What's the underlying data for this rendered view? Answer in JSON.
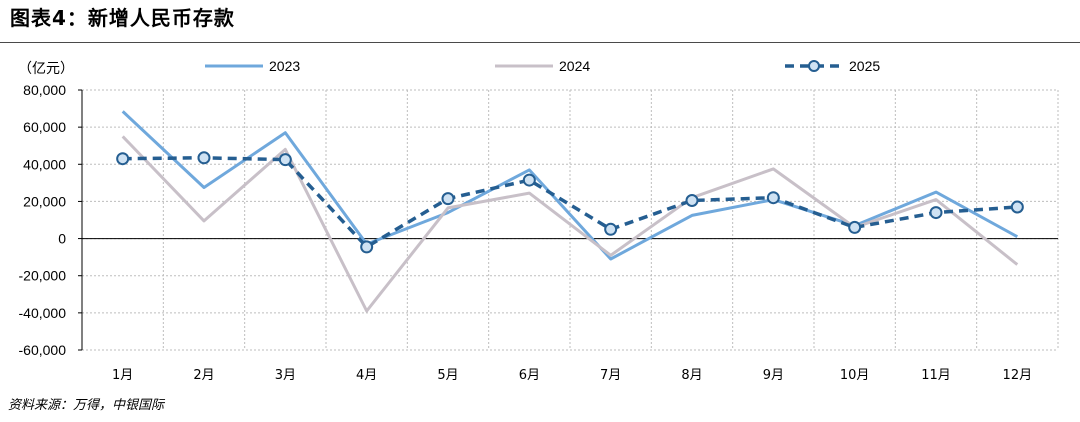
{
  "title": "图表4：新增人民币存款",
  "source": "资料来源：万得，中银国际",
  "chart_data": {
    "type": "line",
    "unit_label": "（亿元）",
    "categories": [
      "1月",
      "2月",
      "3月",
      "4月",
      "5月",
      "6月",
      "7月",
      "8月",
      "9月",
      "10月",
      "11月",
      "12月"
    ],
    "y_ticks": [
      "80,000",
      "60,000",
      "40,000",
      "20,000",
      "0",
      "-20,000",
      "-40,000",
      "-60,000"
    ],
    "ylim": [
      -60000,
      80000
    ],
    "grid": true,
    "legend_position": "top",
    "series": [
      {
        "name": "2023",
        "color": "#6fa8dc",
        "style": "solid",
        "values": [
          68500,
          27500,
          57000,
          -3000,
          14000,
          37000,
          -11000,
          12500,
          21000,
          7000,
          25000,
          1000
        ]
      },
      {
        "name": "2024",
        "color": "#c8c0c8",
        "style": "solid",
        "values": [
          55000,
          9500,
          48000,
          -39000,
          16500,
          24500,
          -9000,
          22000,
          37500,
          6000,
          21000,
          -14000
        ]
      },
      {
        "name": "2025",
        "color": "#255e91",
        "style": "dashed-marker",
        "values": [
          43000,
          43500,
          42500,
          -4500,
          21500,
          31500,
          5000,
          20500,
          22000,
          6000,
          14000,
          17000
        ]
      }
    ]
  }
}
